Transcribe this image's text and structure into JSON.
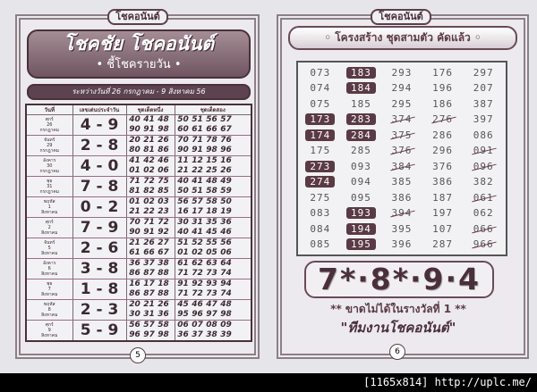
{
  "left_page": {
    "brand": "โชคอนันต์",
    "title": "โชคชัย โชคอนันต์",
    "subtitle": "• ชี้โชครายวัน •",
    "date_range": "ระหว่างวันที่ 26 กรกฎาคม - 9 สิงหาคม 56",
    "headers": [
      "วันที่",
      "เลขเด่นประจำวัน",
      "ชุดเด็ดหนึ่ง",
      "ชุดเด็ดสอง"
    ],
    "rows": [
      {
        "day": "ศุกร์",
        "date": "26",
        "month": "กรกฎาคม",
        "lotto": "4 - 9",
        "set1": [
          "40 41 48",
          "90 91 98"
        ],
        "set2": [
          "50 51 56 57",
          "60 61 66 67"
        ]
      },
      {
        "day": "จันทร์",
        "date": "29",
        "month": "กรกฎาคม",
        "lotto": "2 - 8",
        "set1": [
          "20 21 26",
          "80 81 86"
        ],
        "set2": [
          "70 71 78 76",
          "90 91 98 96"
        ]
      },
      {
        "day": "อังคาร",
        "date": "30",
        "month": "กรกฎาคม",
        "lotto": "4 - 0",
        "set1": [
          "41 42 46",
          "01 02 06"
        ],
        "set2": [
          "11 12 15 16",
          "21 22 25 26"
        ]
      },
      {
        "day": "พุธ",
        "date": "31",
        "month": "กรกฎาคม",
        "lotto": "7 - 8",
        "set1": [
          "71 72 75",
          "81 82 85"
        ],
        "set2": [
          "40 41 48 49",
          "50 51 58 59"
        ]
      },
      {
        "day": "พฤหัส",
        "date": "1",
        "month": "สิงหาคม",
        "lotto": "0 - 2",
        "set1": [
          "01 02 03",
          "21 22 23"
        ],
        "set2": [
          "56 57 58 50",
          "16 17 18 19"
        ]
      },
      {
        "day": "ศุกร์",
        "date": "2",
        "month": "สิงหาคม",
        "lotto": "7 - 9",
        "set1": [
          "70 71 72",
          "90 91 92"
        ],
        "set2": [
          "30 31 35 36",
          "40 41 45 46"
        ]
      },
      {
        "day": "จันทร์",
        "date": "5",
        "month": "สิงหาคม",
        "lotto": "2 - 6",
        "set1": [
          "21 26 27",
          "61 66 67"
        ],
        "set2": [
          "51 52 55 56",
          "01 02 05 06"
        ]
      },
      {
        "day": "อังคาร",
        "date": "6",
        "month": "สิงหาคม",
        "lotto": "3 - 8",
        "set1": [
          "36 37 38",
          "86 87 88"
        ],
        "set2": [
          "61 62 63 64",
          "71 72 73 74"
        ]
      },
      {
        "day": "พุธ",
        "date": "7",
        "month": "สิงหาคม",
        "lotto": "1 - 8",
        "set1": [
          "16 17 18",
          "86 87 88"
        ],
        "set2": [
          "91 92 93 94",
          "71 72 73 74"
        ]
      },
      {
        "day": "พฤหัส",
        "date": "8",
        "month": "สิงหาคม",
        "lotto": "2 - 3",
        "set1": [
          "20 21 26",
          "30 31 36"
        ],
        "set2": [
          "45 46 47 48",
          "95 96 97 98"
        ]
      },
      {
        "day": "ศุกร์",
        "date": "9",
        "month": "สิงหาคม",
        "lotto": "5 - 9",
        "set1": [
          "56 57 58",
          "96 97 98"
        ],
        "set2": [
          "06 07 08 09",
          "36 37 38 39"
        ]
      }
    ],
    "page_number": "5"
  },
  "right_page": {
    "brand": "โชคอนันต์",
    "title": "◦ โครงสร้าง ชุดสามตัว คัดแล้ว ◦",
    "grid": [
      [
        {
          "v": "073"
        },
        {
          "v": "183",
          "hl": true
        },
        {
          "v": "293"
        },
        {
          "v": "176"
        },
        {
          "v": "297"
        }
      ],
      [
        {
          "v": "074"
        },
        {
          "v": "184",
          "hl": true
        },
        {
          "v": "294"
        },
        {
          "v": "196"
        },
        {
          "v": "207"
        }
      ],
      [
        {
          "v": "075"
        },
        {
          "v": "185"
        },
        {
          "v": "295"
        },
        {
          "v": "186"
        },
        {
          "v": "387"
        }
      ],
      [
        {
          "v": "173",
          "hl": true
        },
        {
          "v": "283",
          "hl": true
        },
        {
          "v": "374",
          "x": true
        },
        {
          "v": "276",
          "x": true
        },
        {
          "v": "397"
        }
      ],
      [
        {
          "v": "174",
          "hl": true
        },
        {
          "v": "284",
          "hl": true
        },
        {
          "v": "375",
          "x": true
        },
        {
          "v": "286"
        },
        {
          "v": "086"
        }
      ],
      [
        {
          "v": "175"
        },
        {
          "v": "285"
        },
        {
          "v": "376",
          "x": true
        },
        {
          "v": "296"
        },
        {
          "v": "091",
          "x": true
        }
      ],
      [
        {
          "v": "273",
          "hl": true
        },
        {
          "v": "093"
        },
        {
          "v": "384",
          "x": true
        },
        {
          "v": "376"
        },
        {
          "v": "096",
          "x": true
        }
      ],
      [
        {
          "v": "274",
          "hl": true
        },
        {
          "v": "094"
        },
        {
          "v": "385"
        },
        {
          "v": "386"
        },
        {
          "v": "382"
        }
      ],
      [
        {
          "v": "275"
        },
        {
          "v": "095"
        },
        {
          "v": "386"
        },
        {
          "v": "187"
        },
        {
          "v": "061",
          "x": true
        }
      ],
      [
        {
          "v": "083"
        },
        {
          "v": "193",
          "hl": true
        },
        {
          "v": "394",
          "x": true
        },
        {
          "v": "197"
        },
        {
          "v": "062"
        }
      ],
      [
        {
          "v": "084"
        },
        {
          "v": "194",
          "hl": true
        },
        {
          "v": "395"
        },
        {
          "v": "107"
        },
        {
          "v": "066",
          "x": true
        }
      ],
      [
        {
          "v": "085"
        },
        {
          "v": "195",
          "hl": true
        },
        {
          "v": "396"
        },
        {
          "v": "287"
        },
        {
          "v": "966",
          "x": true
        }
      ]
    ],
    "big_numbers": "7*·8*·9·4",
    "note": "** ขาดไม่ได้ในรางวัลที่ 1 **",
    "team": "\"ทีมงานโชคอนันต์\"",
    "page_number": "6"
  },
  "footer": {
    "caption": "[1165x814] http://uplc.me/"
  }
}
